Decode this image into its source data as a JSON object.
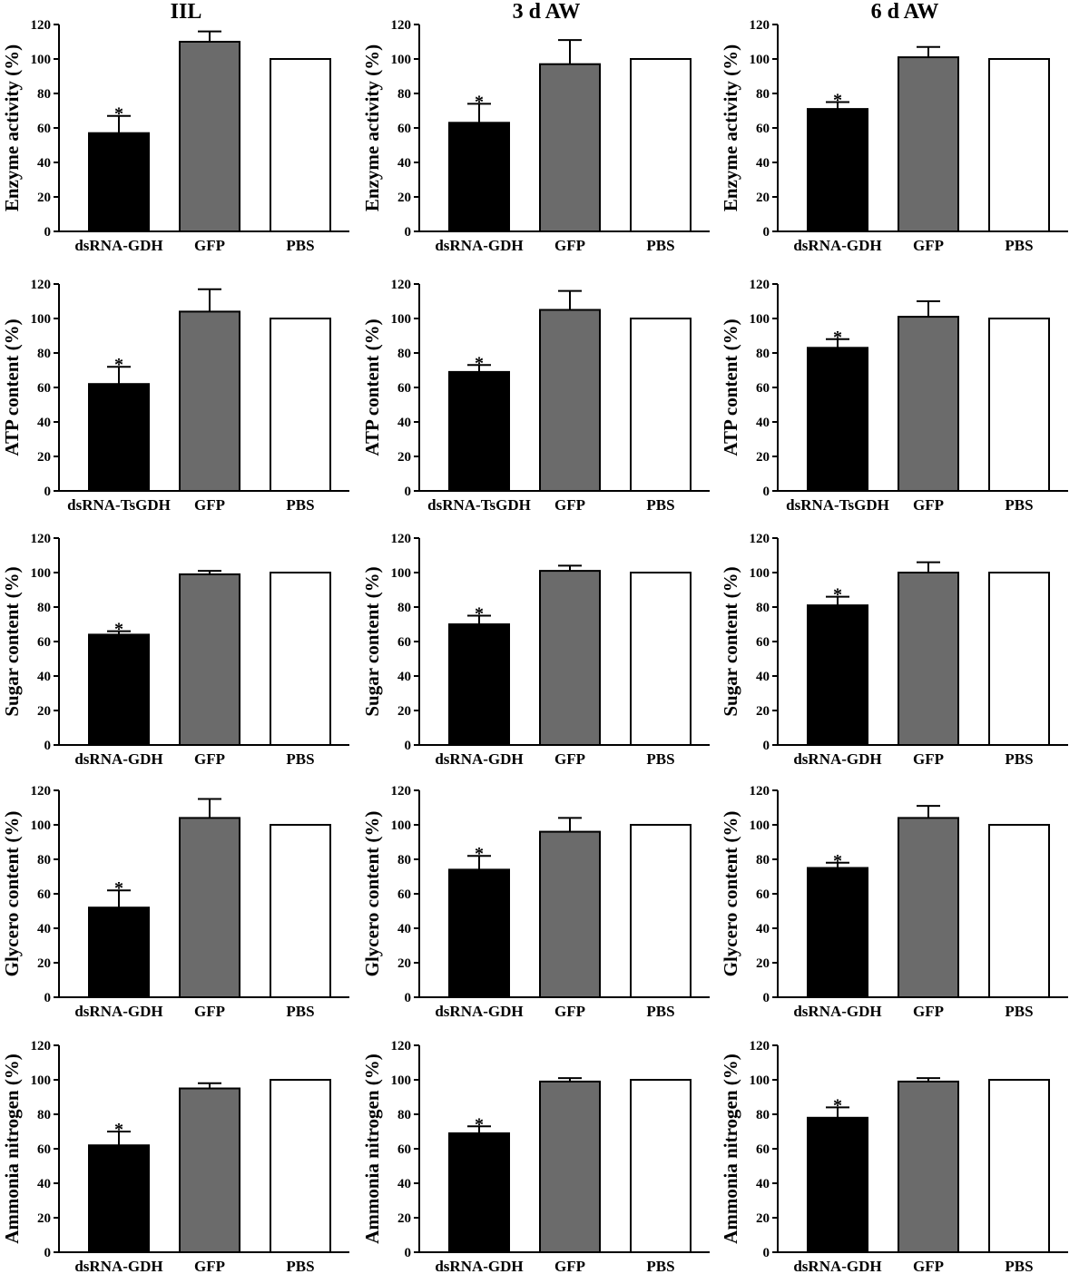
{
  "column_titles": [
    "IIL",
    "3 d AW",
    "6 d AW"
  ],
  "chart_data": [
    {
      "type": "bar",
      "title": "IIL",
      "ylabel": "Enzyme activity (%)",
      "categories": [
        "dsRNA-GDH",
        "GFP",
        "PBS"
      ],
      "values": [
        57,
        110,
        100
      ],
      "errors": [
        10,
        6,
        0
      ],
      "significance": [
        "*",
        "",
        ""
      ],
      "ylim": [
        0,
        120
      ],
      "yticks": [
        0,
        20,
        40,
        60,
        80,
        100,
        120
      ],
      "colors": [
        "#000000",
        "#6b6b6b",
        "#ffffff"
      ],
      "grid": false
    },
    {
      "type": "bar",
      "title": "3 d AW",
      "ylabel": "Enzyme activity (%)",
      "categories": [
        "dsRNA-GDH",
        "GFP",
        "PBS"
      ],
      "values": [
        63,
        97,
        100
      ],
      "errors": [
        11,
        14,
        0
      ],
      "significance": [
        "*",
        "",
        ""
      ],
      "ylim": [
        0,
        120
      ],
      "yticks": [
        0,
        20,
        40,
        60,
        80,
        100,
        120
      ],
      "colors": [
        "#000000",
        "#6b6b6b",
        "#ffffff"
      ],
      "grid": false
    },
    {
      "type": "bar",
      "title": "6 d AW",
      "ylabel": "Enzyme activity (%)",
      "categories": [
        "dsRNA-GDH",
        "GFP",
        "PBS"
      ],
      "values": [
        71,
        101,
        100
      ],
      "errors": [
        4,
        6,
        0
      ],
      "significance": [
        "*",
        "",
        ""
      ],
      "ylim": [
        0,
        120
      ],
      "yticks": [
        0,
        20,
        40,
        60,
        80,
        100,
        120
      ],
      "colors": [
        "#000000",
        "#6b6b6b",
        "#ffffff"
      ],
      "grid": false
    },
    {
      "type": "bar",
      "title": "",
      "ylabel": "ATP content (%)",
      "categories": [
        "dsRNA-TsGDH",
        "GFP",
        "PBS"
      ],
      "values": [
        62,
        104,
        100
      ],
      "errors": [
        10,
        13,
        0
      ],
      "significance": [
        "*",
        "",
        ""
      ],
      "ylim": [
        0,
        120
      ],
      "yticks": [
        0,
        20,
        40,
        60,
        80,
        100,
        120
      ],
      "colors": [
        "#000000",
        "#6b6b6b",
        "#ffffff"
      ],
      "grid": false
    },
    {
      "type": "bar",
      "title": "",
      "ylabel": "ATP content (%)",
      "categories": [
        "dsRNA-TsGDH",
        "GFP",
        "PBS"
      ],
      "values": [
        69,
        105,
        100
      ],
      "errors": [
        4,
        11,
        0
      ],
      "significance": [
        "*",
        "",
        ""
      ],
      "ylim": [
        0,
        120
      ],
      "yticks": [
        0,
        20,
        40,
        60,
        80,
        100,
        120
      ],
      "colors": [
        "#000000",
        "#6b6b6b",
        "#ffffff"
      ],
      "grid": false
    },
    {
      "type": "bar",
      "title": "",
      "ylabel": "ATP content (%)",
      "categories": [
        "dsRNA-TsGDH",
        "GFP",
        "PBS"
      ],
      "values": [
        83,
        101,
        100
      ],
      "errors": [
        5,
        9,
        0
      ],
      "significance": [
        "*",
        "",
        ""
      ],
      "ylim": [
        0,
        120
      ],
      "yticks": [
        0,
        20,
        40,
        60,
        80,
        100,
        120
      ],
      "colors": [
        "#000000",
        "#6b6b6b",
        "#ffffff"
      ],
      "grid": false
    },
    {
      "type": "bar",
      "title": "",
      "ylabel": "Sugar content (%)",
      "categories": [
        "dsRNA-GDH",
        "GFP",
        "PBS"
      ],
      "values": [
        64,
        99,
        100
      ],
      "errors": [
        2,
        2,
        0
      ],
      "significance": [
        "*",
        "",
        ""
      ],
      "ylim": [
        0,
        120
      ],
      "yticks": [
        0,
        20,
        40,
        60,
        80,
        100,
        120
      ],
      "colors": [
        "#000000",
        "#6b6b6b",
        "#ffffff"
      ],
      "grid": false
    },
    {
      "type": "bar",
      "title": "",
      "ylabel": "Sugar content (%)",
      "categories": [
        "dsRNA-GDH",
        "GFP",
        "PBS"
      ],
      "values": [
        70,
        101,
        100
      ],
      "errors": [
        5,
        3,
        0
      ],
      "significance": [
        "*",
        "",
        ""
      ],
      "ylim": [
        0,
        120
      ],
      "yticks": [
        0,
        20,
        40,
        60,
        80,
        100,
        120
      ],
      "colors": [
        "#000000",
        "#6b6b6b",
        "#ffffff"
      ],
      "grid": false
    },
    {
      "type": "bar",
      "title": "",
      "ylabel": "Sugar content (%)",
      "categories": [
        "dsRNA-GDH",
        "GFP",
        "PBS"
      ],
      "values": [
        81,
        100,
        100
      ],
      "errors": [
        5,
        6,
        0
      ],
      "significance": [
        "*",
        "",
        ""
      ],
      "ylim": [
        0,
        120
      ],
      "yticks": [
        0,
        20,
        40,
        60,
        80,
        100,
        120
      ],
      "colors": [
        "#000000",
        "#6b6b6b",
        "#ffffff"
      ],
      "grid": false
    },
    {
      "type": "bar",
      "title": "",
      "ylabel": "Glycero content (%)",
      "categories": [
        "dsRNA-GDH",
        "GFP",
        "PBS"
      ],
      "values": [
        52,
        104,
        100
      ],
      "errors": [
        10,
        11,
        0
      ],
      "significance": [
        "*",
        "",
        ""
      ],
      "ylim": [
        0,
        120
      ],
      "yticks": [
        0,
        20,
        40,
        60,
        80,
        100,
        120
      ],
      "colors": [
        "#000000",
        "#6b6b6b",
        "#ffffff"
      ],
      "grid": false
    },
    {
      "type": "bar",
      "title": "",
      "ylabel": "Glycero content (%)",
      "categories": [
        "dsRNA-GDH",
        "GFP",
        "PBS"
      ],
      "values": [
        74,
        96,
        100
      ],
      "errors": [
        8,
        8,
        0
      ],
      "significance": [
        "*",
        "",
        ""
      ],
      "ylim": [
        0,
        120
      ],
      "yticks": [
        0,
        20,
        40,
        60,
        80,
        100,
        120
      ],
      "colors": [
        "#000000",
        "#6b6b6b",
        "#ffffff"
      ],
      "grid": false
    },
    {
      "type": "bar",
      "title": "",
      "ylabel": "Glycero content (%)",
      "categories": [
        "dsRNA-GDH",
        "GFP",
        "PBS"
      ],
      "values": [
        75,
        104,
        100
      ],
      "errors": [
        3,
        7,
        0
      ],
      "significance": [
        "*",
        "",
        ""
      ],
      "ylim": [
        0,
        120
      ],
      "yticks": [
        0,
        20,
        40,
        60,
        80,
        100,
        120
      ],
      "colors": [
        "#000000",
        "#6b6b6b",
        "#ffffff"
      ],
      "grid": false
    },
    {
      "type": "bar",
      "title": "",
      "ylabel": "Ammonia nitrogen (%)",
      "categories": [
        "dsRNA-GDH",
        "GFP",
        "PBS"
      ],
      "values": [
        62,
        95,
        100
      ],
      "errors": [
        8,
        3,
        0
      ],
      "significance": [
        "*",
        "",
        ""
      ],
      "ylim": [
        0,
        120
      ],
      "yticks": [
        0,
        20,
        40,
        60,
        80,
        100,
        120
      ],
      "colors": [
        "#000000",
        "#6b6b6b",
        "#ffffff"
      ],
      "grid": false
    },
    {
      "type": "bar",
      "title": "",
      "ylabel": "Ammonia nitrogen (%)",
      "categories": [
        "dsRNA-GDH",
        "GFP",
        "PBS"
      ],
      "values": [
        69,
        99,
        100
      ],
      "errors": [
        4,
        2,
        0
      ],
      "significance": [
        "*",
        "",
        ""
      ],
      "ylim": [
        0,
        120
      ],
      "yticks": [
        0,
        20,
        40,
        60,
        80,
        100,
        120
      ],
      "colors": [
        "#000000",
        "#6b6b6b",
        "#ffffff"
      ],
      "grid": false
    },
    {
      "type": "bar",
      "title": "",
      "ylabel": "Ammonia nitrogen (%)",
      "categories": [
        "dsRNA-GDH",
        "GFP",
        "PBS"
      ],
      "values": [
        78,
        99,
        100
      ],
      "errors": [
        6,
        2,
        0
      ],
      "significance": [
        "*",
        "",
        ""
      ],
      "ylim": [
        0,
        120
      ],
      "yticks": [
        0,
        20,
        40,
        60,
        80,
        100,
        120
      ],
      "colors": [
        "#000000",
        "#6b6b6b",
        "#ffffff"
      ],
      "grid": false
    }
  ]
}
